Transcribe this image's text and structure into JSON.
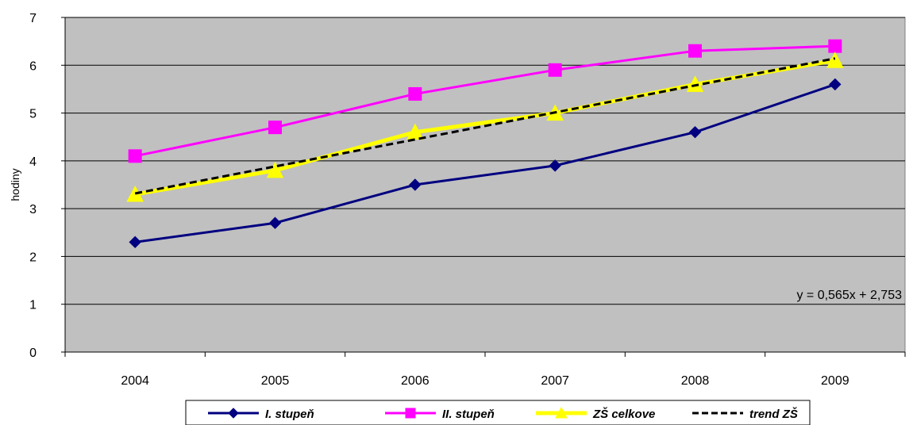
{
  "chart_data": {
    "type": "line",
    "categories": [
      "2004",
      "2005",
      "2006",
      "2007",
      "2008",
      "2009"
    ],
    "ylabel": "hodiny",
    "ylim": [
      0,
      7
    ],
    "yticks": [
      "0",
      "1",
      "2",
      "3",
      "4",
      "5",
      "6",
      "7"
    ],
    "grid": true,
    "legend_position": "bottom",
    "series": [
      {
        "name": "I. stupeň",
        "values": [
          2.3,
          2.7,
          3.5,
          3.9,
          4.6,
          5.6
        ],
        "color": "#000080",
        "marker": "diamond"
      },
      {
        "name": "II. stupeň",
        "values": [
          4.1,
          4.7,
          5.4,
          5.9,
          6.3,
          6.4
        ],
        "color": "#ff00ff",
        "marker": "square"
      },
      {
        "name": "ZŠ celkove",
        "values": [
          3.3,
          3.8,
          4.6,
          5.0,
          5.6,
          6.1
        ],
        "color": "#ffff00",
        "marker": "triangle"
      }
    ],
    "trend": {
      "name": "trend ZŠ",
      "equation": "y = 0,565x + 2,753",
      "slope": 0.565,
      "intercept": 2.753,
      "color": "#000000",
      "dash": true
    },
    "plot_background": "#c0c0c0"
  }
}
